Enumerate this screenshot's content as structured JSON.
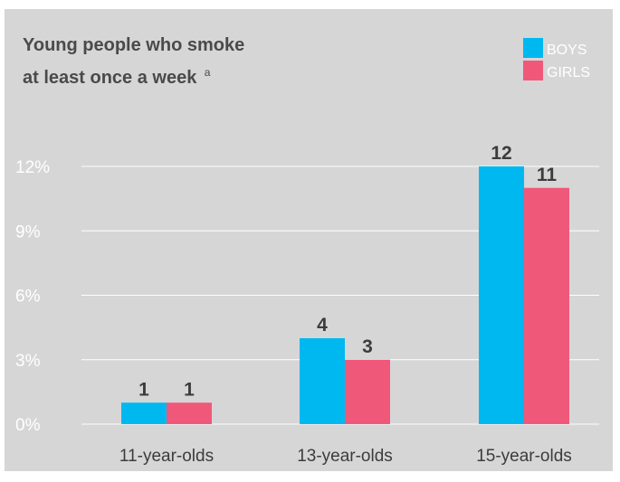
{
  "chart_data": {
    "type": "bar",
    "title_line1": "Young people who smoke",
    "title_line2": "at least once a week",
    "title_superscript": "a",
    "categories": [
      "11-year-olds",
      "13-year-olds",
      "15-year-olds"
    ],
    "series": [
      {
        "name": "BOYS",
        "color": "#00b8f0",
        "values": [
          1,
          4,
          12
        ]
      },
      {
        "name": "GIRLS",
        "color": "#f0587a",
        "values": [
          1,
          3,
          11
        ]
      }
    ],
    "y_ticks": [
      "0%",
      "3%",
      "6%",
      "9%",
      "12%"
    ],
    "y_tick_values": [
      0,
      3,
      6,
      9,
      12
    ],
    "ylim": [
      0,
      12
    ],
    "grid": true,
    "legend_position": "top-right"
  }
}
